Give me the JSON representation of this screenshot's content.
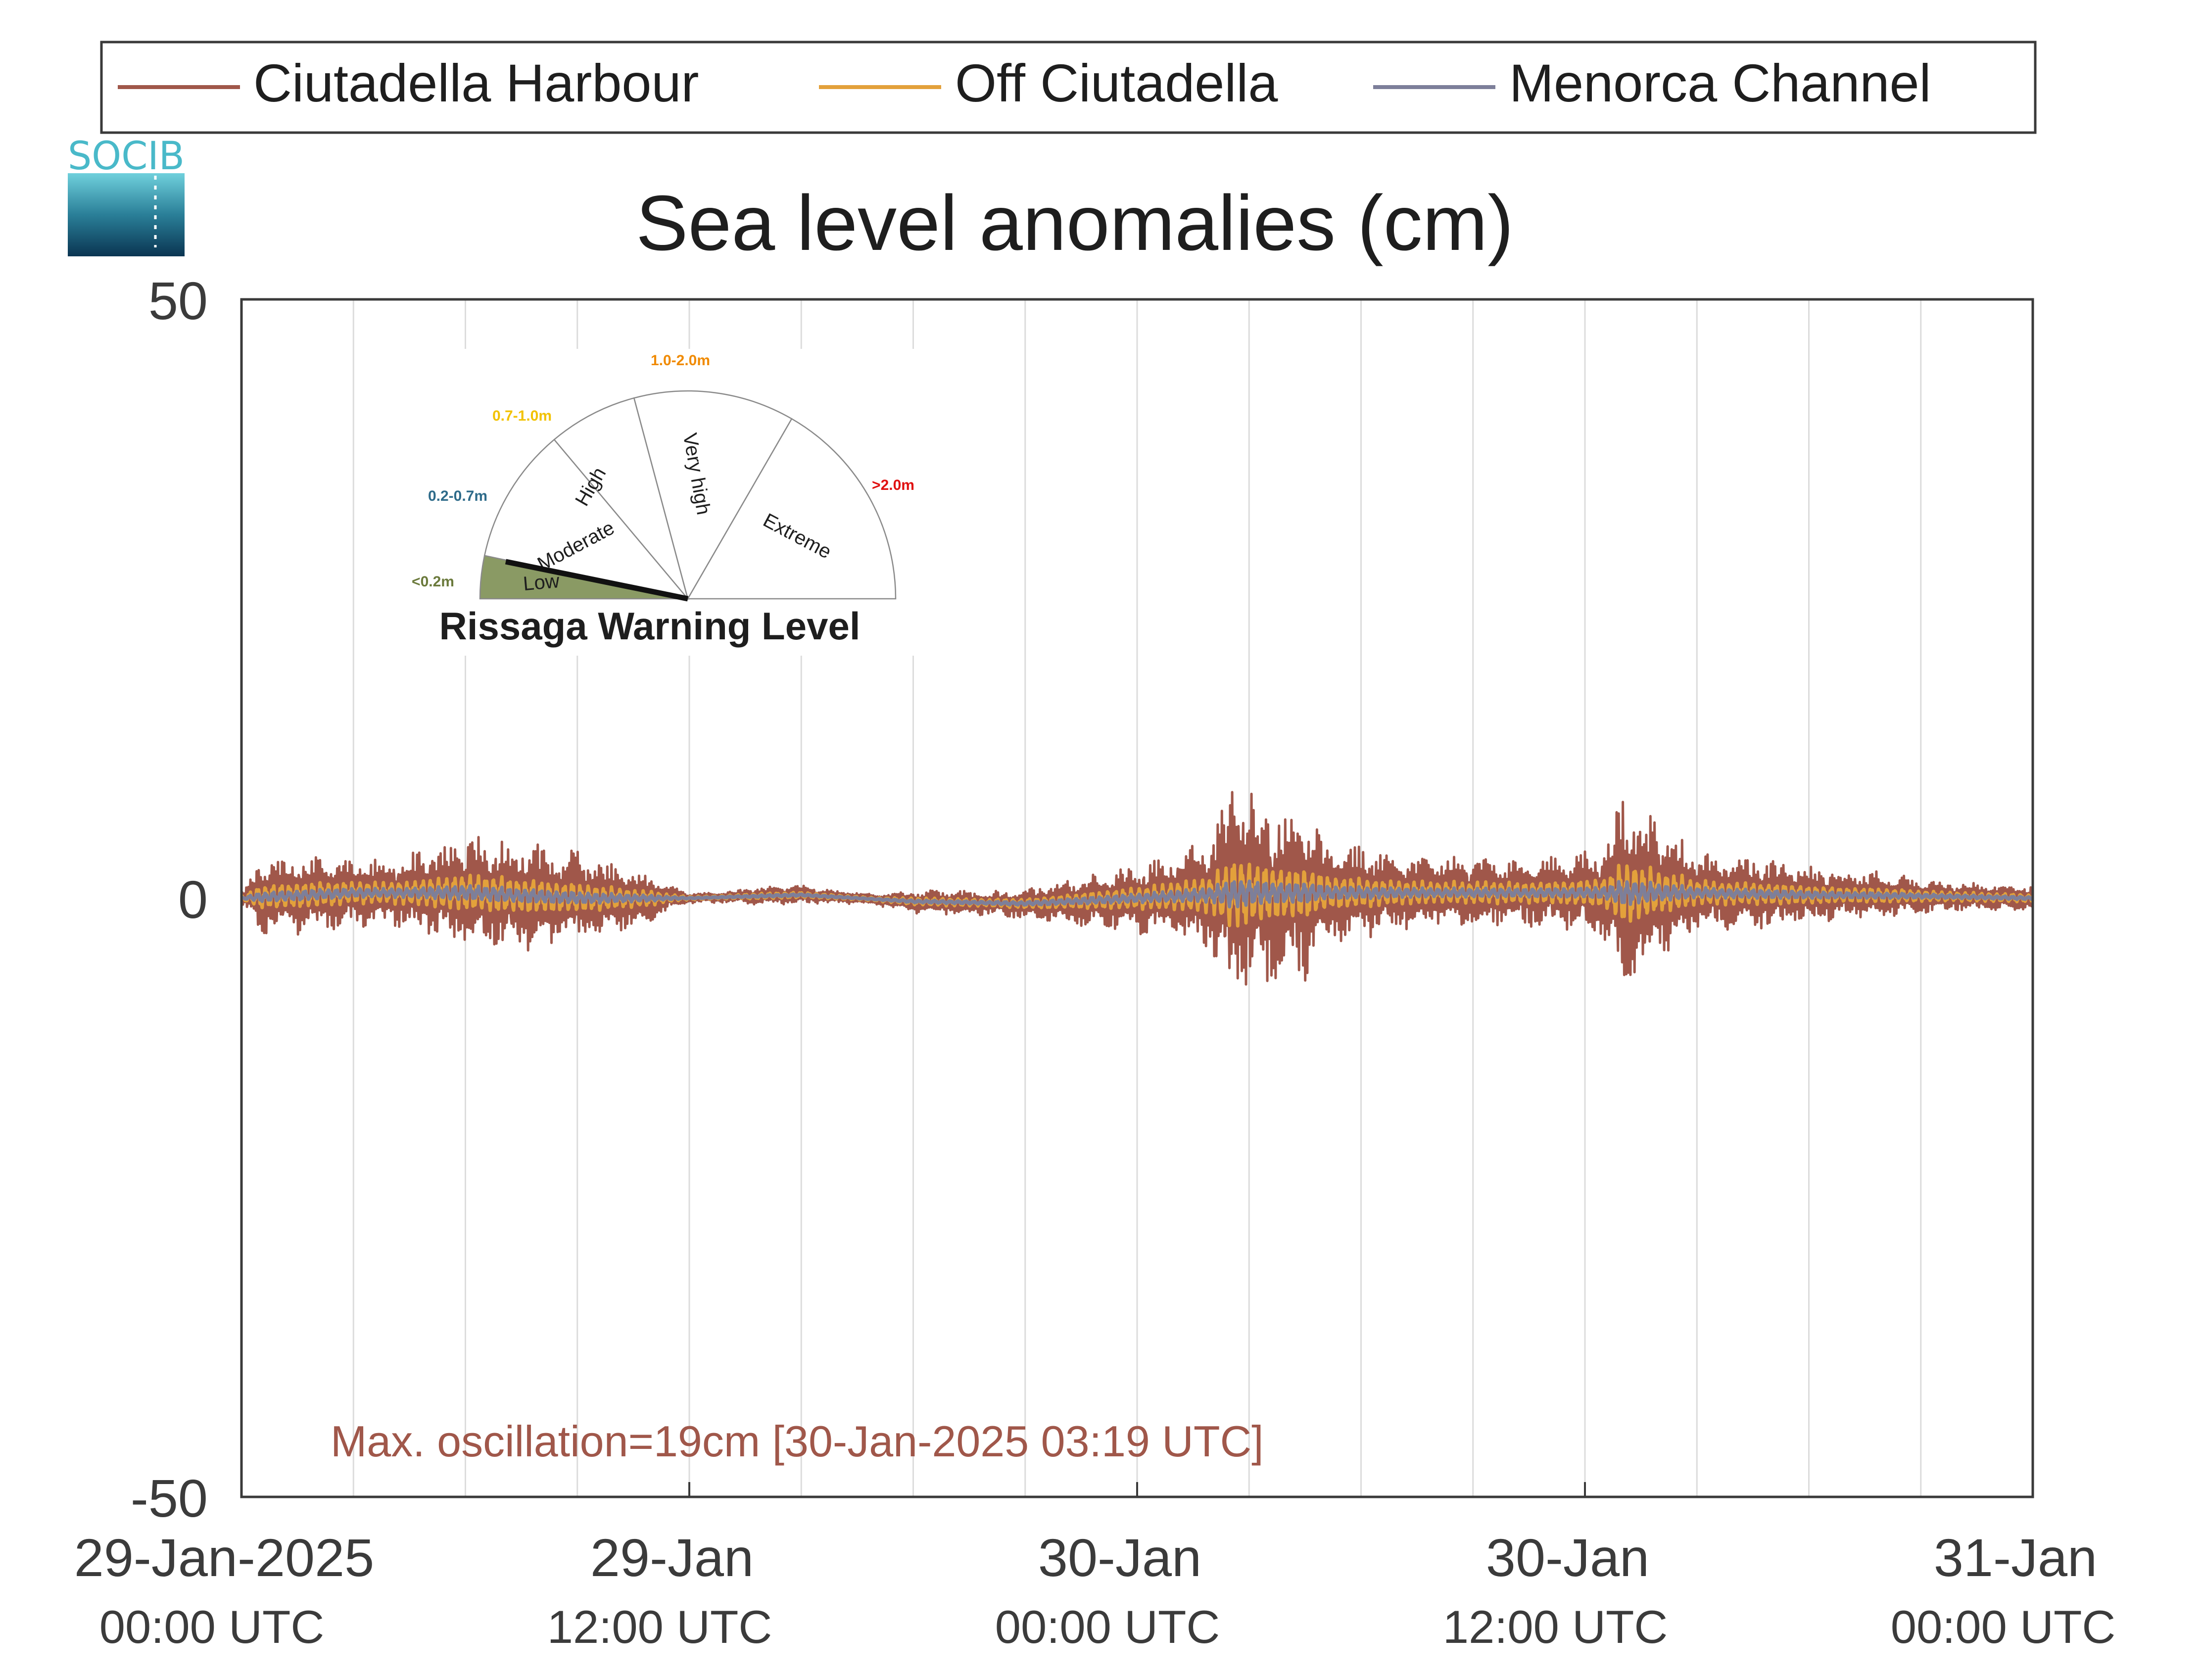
{
  "logo": {
    "text": "SOCIB"
  },
  "legend": {
    "items": [
      {
        "label": "Ciutadella Harbour",
        "color": "#a0574a"
      },
      {
        "label": "Off Ciutadella",
        "color": "#e3a13b"
      },
      {
        "label": "Menorca Channel",
        "color": "#7d7f9a"
      }
    ],
    "placement": "top"
  },
  "gauge": {
    "title": "Rissaga Warning Level",
    "levels": [
      {
        "name": "Low",
        "range": "<0.2m",
        "range_color": "#6b7a3c",
        "fill": "#8a9a64"
      },
      {
        "name": "Moderate",
        "range": "0.2-0.7m",
        "range_color": "#2e6b8a",
        "fill": "#ffffff"
      },
      {
        "name": "High",
        "range": "0.7-1.0m",
        "range_color": "#f2c200",
        "fill": "#ffffff"
      },
      {
        "name": "Very high",
        "range": "1.0-2.0m",
        "range_color": "#f08a00",
        "fill": "#ffffff"
      },
      {
        "name": "Extreme",
        "range": ">2.0m",
        "range_color": "#e01010",
        "fill": "#ffffff"
      }
    ],
    "active_level": "Low"
  },
  "chart_data": {
    "type": "line",
    "title": "Sea level anomalies (cm)",
    "xlabel": "",
    "ylabel": "",
    "ylim": [
      -50,
      50
    ],
    "yticks": [
      -50,
      0,
      50
    ],
    "xlim_hours": [
      0,
      48
    ],
    "grid": "vertical lines every 3 h",
    "x_ticks": [
      {
        "line1": "29-Jan-2025",
        "line2": "00:00 UTC"
      },
      {
        "line1": "29-Jan",
        "line2": "12:00 UTC"
      },
      {
        "line1": "30-Jan",
        "line2": "00:00 UTC"
      },
      {
        "line1": "30-Jan",
        "line2": "12:00 UTC"
      },
      {
        "line1": "31-Jan",
        "line2": "00:00 UTC"
      }
    ],
    "annotation": "Max. oscillation=19cm [30-Jan-2025 03:19 UTC]",
    "series": [
      {
        "name": "Ciutadella Harbour",
        "color": "#a0574a",
        "envelope_hour": [
          0,
          0.5,
          1,
          2,
          3,
          4,
          5,
          6,
          7,
          8,
          9,
          10,
          11,
          11.5,
          12,
          13,
          14,
          15,
          16,
          17,
          18,
          19,
          20,
          21,
          22,
          23,
          24,
          25,
          26,
          26.5,
          27,
          27.5,
          28,
          28.5,
          29,
          30,
          31,
          32,
          33,
          34,
          35,
          36,
          36.5,
          37,
          37.5,
          38,
          38.5,
          39,
          40,
          41,
          42,
          43,
          44,
          45,
          46,
          47,
          48
        ],
        "envelope_amp_cm": [
          0.5,
          3,
          3.5,
          3.5,
          3,
          3,
          4,
          5,
          5,
          4.5,
          4,
          3,
          2,
          1,
          0.5,
          0.5,
          0.8,
          0.8,
          0.6,
          0.5,
          1,
          1,
          1,
          1.3,
          1.8,
          2.5,
          3,
          4,
          5,
          10,
          9,
          8,
          7,
          7.5,
          5,
          4,
          3.5,
          3,
          3,
          3,
          3,
          3.5,
          4,
          9,
          8,
          6,
          5,
          3.5,
          3,
          3,
          2.5,
          2,
          2,
          1.5,
          1.2,
          1.2,
          1
        ],
        "mean_hour": [
          0,
          3,
          6,
          9,
          12,
          15,
          18,
          21,
          24,
          27,
          30,
          33,
          36,
          39,
          42,
          45,
          48
        ],
        "mean_cm": [
          0,
          0.5,
          0.5,
          0,
          0,
          0.3,
          -0.3,
          -0.5,
          0,
          0.5,
          0.5,
          0.5,
          0.5,
          0.5,
          0.3,
          0.2,
          0
        ],
        "max_oscillation_cm": 19
      },
      {
        "name": "Off Ciutadella",
        "color": "#e3a13b",
        "amp_scale": 0.32
      },
      {
        "name": "Menorca Channel",
        "color": "#7d7f9a",
        "amp_scale": 0.13
      }
    ]
  }
}
